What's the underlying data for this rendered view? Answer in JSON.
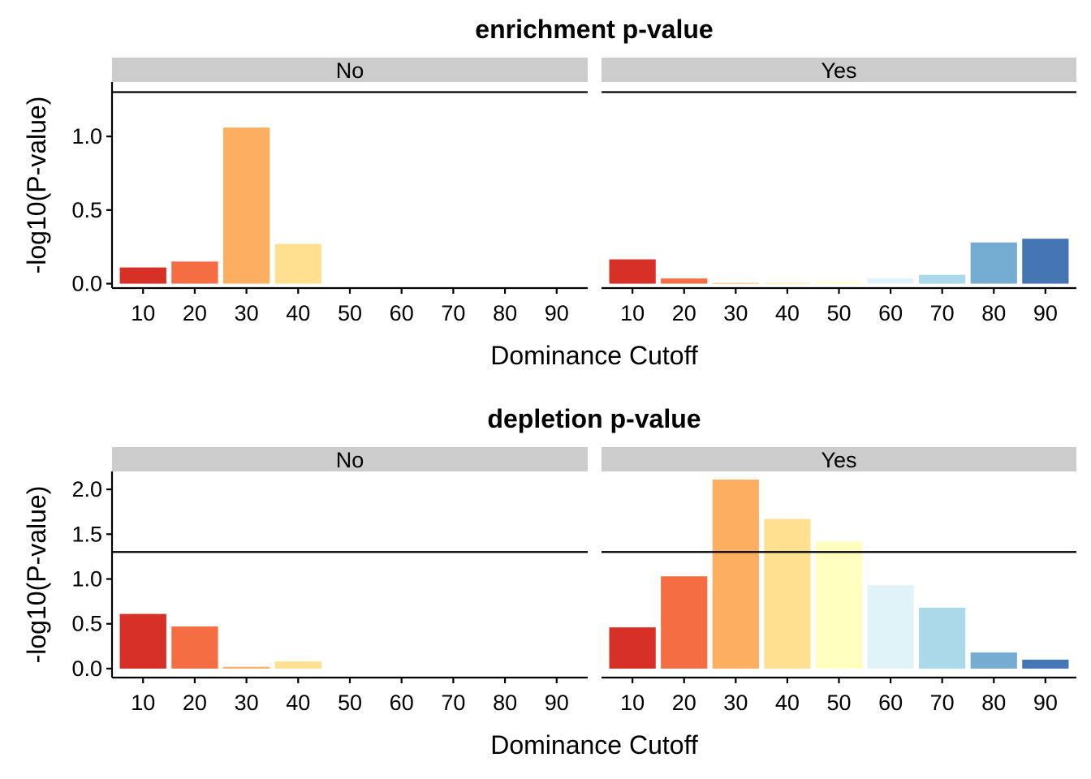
{
  "chart_data": [
    {
      "type": "bar",
      "title": "enrichment p-value",
      "xlabel": "Dominance Cutoff",
      "ylabel": "-log10(P-value)",
      "categories": [
        "10",
        "20",
        "30",
        "40",
        "50",
        "60",
        "70",
        "80",
        "90"
      ],
      "ylim": [
        -0.03,
        1.37
      ],
      "yticks": [
        0.0,
        0.5,
        1.0
      ],
      "ytick_labels": [
        "0.0",
        "0.5",
        "1.0"
      ],
      "reference_line": 1.301,
      "grid": false,
      "facets": [
        {
          "name": "No",
          "values": [
            0.11,
            0.15,
            1.06,
            0.27,
            0,
            0,
            0,
            0,
            0
          ]
        },
        {
          "name": "Yes",
          "values": [
            0.165,
            0.035,
            0.005,
            0.005,
            0.01,
            0.035,
            0.06,
            0.28,
            0.305
          ]
        }
      ]
    },
    {
      "type": "bar",
      "title": "depletion p-value",
      "xlabel": "Dominance Cutoff",
      "ylabel": "-log10(P-value)",
      "categories": [
        "10",
        "20",
        "30",
        "40",
        "50",
        "60",
        "70",
        "80",
        "90"
      ],
      "ylim": [
        -0.1,
        2.2
      ],
      "yticks": [
        0.0,
        0.5,
        1.0,
        1.5,
        2.0
      ],
      "ytick_labels": [
        "0.0",
        "0.5",
        "1.0",
        "1.5",
        "2.0"
      ],
      "reference_line": 1.301,
      "grid": false,
      "facets": [
        {
          "name": "No",
          "values": [
            0.61,
            0.47,
            0.02,
            0.08,
            0,
            0,
            0,
            0,
            0
          ]
        },
        {
          "name": "Yes",
          "values": [
            0.46,
            1.03,
            2.11,
            1.67,
            1.42,
            0.93,
            0.68,
            0.18,
            0.1
          ]
        }
      ]
    }
  ],
  "colors": {
    "category_fill": [
      "#d73027",
      "#f46d43",
      "#fdae61",
      "#fee090",
      "#ffffbf",
      "#e0f3f8",
      "#abd9e9",
      "#74add1",
      "#4575b4"
    ],
    "strip_background": "#cccccc",
    "reference_line": "#000000",
    "axis": "#000000"
  }
}
